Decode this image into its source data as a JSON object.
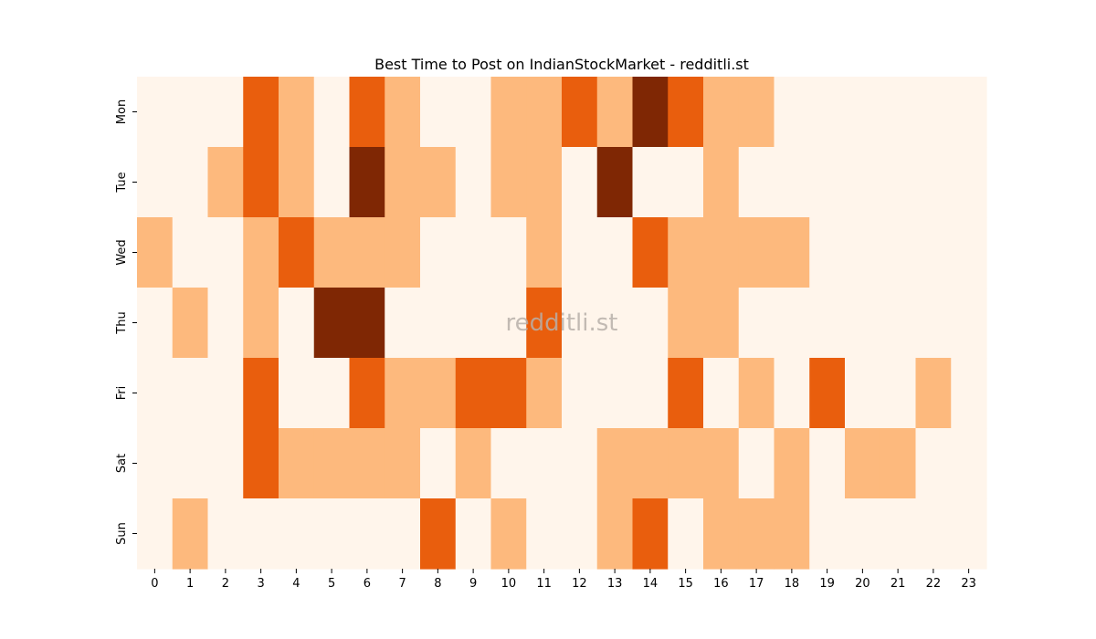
{
  "chart_data": {
    "type": "heatmap",
    "title": "Best Time to Post on IndianStockMarket - redditli.st",
    "watermark": "redditli.st",
    "xlabel": "",
    "ylabel": "",
    "x_categories": [
      "0",
      "1",
      "2",
      "3",
      "4",
      "5",
      "6",
      "7",
      "8",
      "9",
      "10",
      "11",
      "12",
      "13",
      "14",
      "15",
      "16",
      "17",
      "18",
      "19",
      "20",
      "21",
      "22",
      "23"
    ],
    "y_categories": [
      "Mon",
      "Tue",
      "Wed",
      "Thu",
      "Fri",
      "Sat",
      "Sun"
    ],
    "values": [
      [
        0,
        0,
        0,
        2,
        1,
        0,
        2,
        1,
        0,
        0,
        1,
        1,
        2,
        1,
        3,
        2,
        1,
        1,
        0,
        0,
        0,
        0,
        0,
        0
      ],
      [
        0,
        0,
        1,
        2,
        1,
        0,
        3,
        1,
        1,
        0,
        1,
        1,
        0,
        3,
        0,
        0,
        1,
        0,
        0,
        0,
        0,
        0,
        0,
        0
      ],
      [
        1,
        0,
        0,
        1,
        2,
        1,
        1,
        1,
        0,
        0,
        0,
        1,
        0,
        0,
        2,
        1,
        1,
        1,
        1,
        0,
        0,
        0,
        0,
        0
      ],
      [
        0,
        1,
        0,
        1,
        0,
        3,
        3,
        0,
        0,
        0,
        0,
        2,
        0,
        0,
        0,
        1,
        1,
        0,
        0,
        0,
        0,
        0,
        0,
        0
      ],
      [
        0,
        0,
        0,
        2,
        0,
        0,
        2,
        1,
        1,
        2,
        2,
        1,
        0,
        0,
        0,
        2,
        0,
        1,
        0,
        2,
        0,
        0,
        1,
        0
      ],
      [
        0,
        0,
        0,
        2,
        1,
        1,
        1,
        1,
        0,
        1,
        0,
        0,
        0,
        1,
        1,
        1,
        1,
        0,
        1,
        0,
        1,
        1,
        0,
        0
      ],
      [
        0,
        1,
        0,
        0,
        0,
        0,
        0,
        0,
        2,
        0,
        1,
        0,
        0,
        1,
        2,
        0,
        1,
        1,
        1,
        0,
        0,
        0,
        0,
        0
      ]
    ],
    "colormap": [
      "#fff5eb",
      "#fdb97d",
      "#e95e0d",
      "#7f2704"
    ],
    "colorbar": false,
    "grid": false
  }
}
